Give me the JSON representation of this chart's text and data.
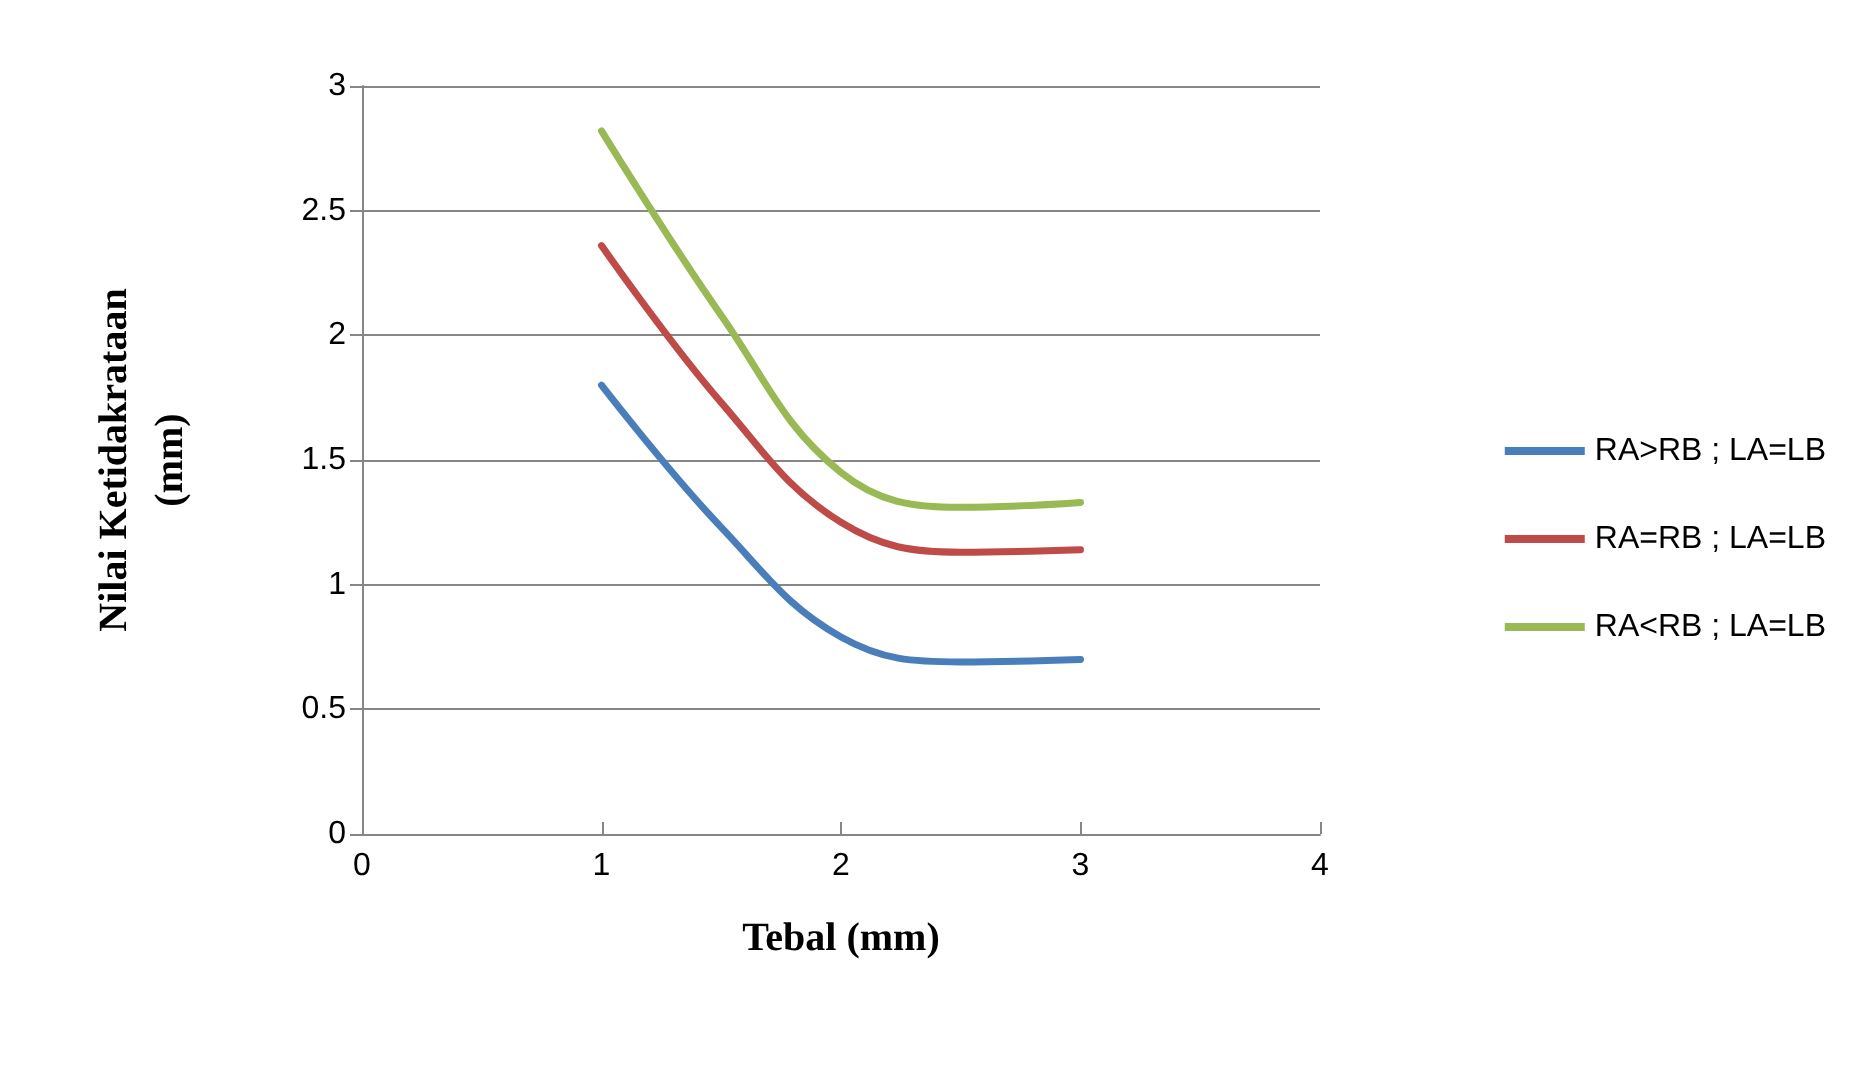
{
  "chart_data": {
    "type": "line",
    "xlabel": "Tebal (mm)",
    "ylabel": "Nilai Ketidakrataan\n(mm)",
    "x": [
      1,
      1.5,
      2,
      2.5,
      3
    ],
    "series": [
      {
        "name": "RA>RB ; LA=LB",
        "color": "#4a7ebb",
        "values": [
          1.8,
          1.23,
          0.79,
          0.69,
          0.7
        ]
      },
      {
        "name": "RA=RB ; LA=LB",
        "color": "#be4b48",
        "values": [
          2.36,
          1.73,
          1.25,
          1.13,
          1.14
        ]
      },
      {
        "name": "RA<RB ; LA=LB",
        "color": "#98b954",
        "values": [
          2.82,
          2.08,
          1.45,
          1.31,
          1.33
        ]
      }
    ],
    "xlim": [
      0,
      4
    ],
    "xticks": [
      0,
      1,
      2,
      3,
      4
    ],
    "ylim": [
      0,
      3
    ],
    "yticks": [
      0,
      0.5,
      1,
      1.5,
      2,
      2.5,
      3
    ],
    "grid": "y",
    "legend": "right",
    "marker": "none",
    "line_style": "solid"
  }
}
